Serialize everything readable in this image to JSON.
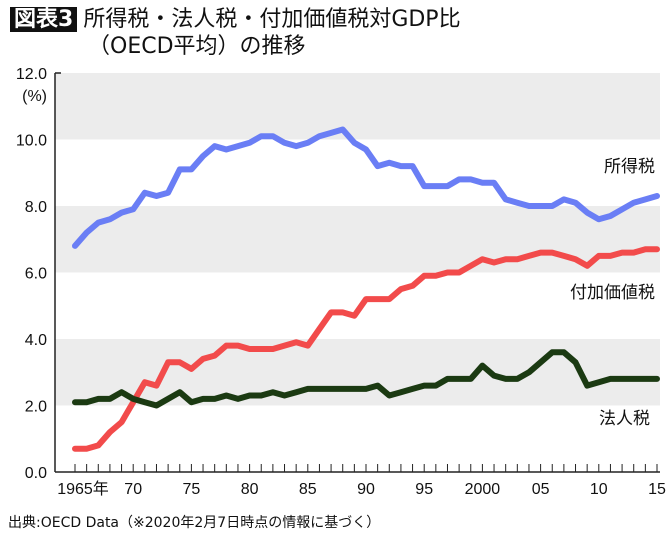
{
  "chart_data": {
    "type": "line",
    "title_badge": "図表3",
    "title_line1": "所得税・法人税・付加価値税対GDP比",
    "title_line2": "（OECD平均）の推移",
    "ylabel": "(%)",
    "ylim": [
      0,
      12
    ],
    "yticks": [
      "0.0",
      "2.0",
      "4.0",
      "6.0",
      "8.0",
      "10.0",
      "12.0"
    ],
    "xlim": [
      1965,
      2015
    ],
    "xtick_labels": [
      {
        "year": 1965,
        "label": "1965年"
      },
      {
        "year": 1970,
        "label": "70"
      },
      {
        "year": 1975,
        "label": "75"
      },
      {
        "year": 1980,
        "label": "80"
      },
      {
        "year": 1985,
        "label": "85"
      },
      {
        "year": 1990,
        "label": "90"
      },
      {
        "year": 1995,
        "label": "95"
      },
      {
        "year": 2000,
        "label": "2000"
      },
      {
        "year": 2005,
        "label": "05"
      },
      {
        "year": 2010,
        "label": "10"
      },
      {
        "year": 2015,
        "label": "15"
      }
    ],
    "grid": "alternating gray bands",
    "x_start": 1965,
    "series": [
      {
        "name": "所得税",
        "color": "#6a7ef5",
        "values": [
          6.8,
          7.2,
          7.5,
          7.6,
          7.8,
          7.9,
          8.4,
          8.3,
          8.4,
          9.1,
          9.1,
          9.5,
          9.8,
          9.7,
          9.8,
          9.9,
          10.1,
          10.1,
          9.9,
          9.8,
          9.9,
          10.1,
          10.2,
          10.3,
          9.9,
          9.7,
          9.2,
          9.3,
          9.2,
          9.2,
          8.6,
          8.6,
          8.6,
          8.8,
          8.8,
          8.7,
          8.7,
          8.2,
          8.1,
          8.0,
          8.0,
          8.0,
          8.2,
          8.1,
          7.8,
          7.6,
          7.7,
          7.9,
          8.1,
          8.2,
          8.3
        ]
      },
      {
        "name": "付加価値税",
        "color": "#f24b4b",
        "values": [
          0.7,
          0.7,
          0.8,
          1.2,
          1.5,
          2.1,
          2.7,
          2.6,
          3.3,
          3.3,
          3.1,
          3.4,
          3.5,
          3.8,
          3.8,
          3.7,
          3.7,
          3.7,
          3.8,
          3.9,
          3.8,
          4.3,
          4.8,
          4.8,
          4.7,
          5.2,
          5.2,
          5.2,
          5.5,
          5.6,
          5.9,
          5.9,
          6.0,
          6.0,
          6.2,
          6.4,
          6.3,
          6.4,
          6.4,
          6.5,
          6.6,
          6.6,
          6.5,
          6.4,
          6.2,
          6.5,
          6.5,
          6.6,
          6.6,
          6.7,
          6.7
        ]
      },
      {
        "name": "法人税",
        "color": "#1b3a12",
        "values": [
          2.1,
          2.1,
          2.2,
          2.2,
          2.4,
          2.2,
          2.1,
          2.0,
          2.2,
          2.4,
          2.1,
          2.2,
          2.2,
          2.3,
          2.2,
          2.3,
          2.3,
          2.4,
          2.3,
          2.4,
          2.5,
          2.5,
          2.5,
          2.5,
          2.5,
          2.5,
          2.6,
          2.3,
          2.4,
          2.5,
          2.6,
          2.6,
          2.8,
          2.8,
          2.8,
          3.2,
          2.9,
          2.8,
          2.8,
          3.0,
          3.3,
          3.6,
          3.6,
          3.3,
          2.6,
          2.7,
          2.8,
          2.8,
          2.8,
          2.8,
          2.8
        ]
      }
    ],
    "source": "出典:OECD Data（※2020年2月7日時点の情報に基づく）"
  }
}
